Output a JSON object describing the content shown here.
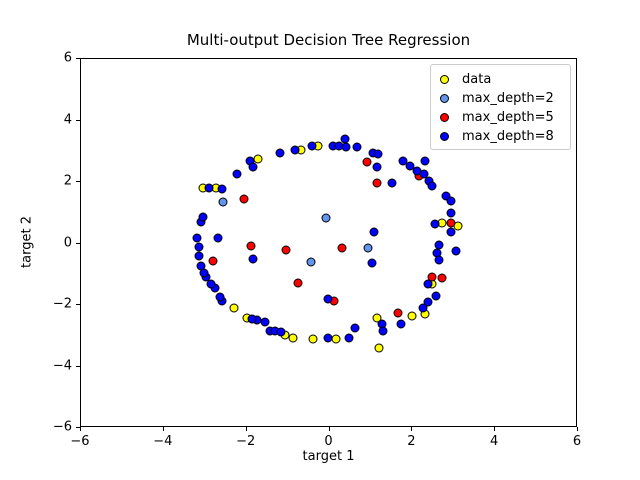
{
  "chart_data": {
    "type": "scatter",
    "title": "Multi-output Decision Tree Regression",
    "xlabel": "target 1",
    "ylabel": "target 2",
    "xlim": [
      -6,
      6
    ],
    "ylim": [
      -6,
      6
    ],
    "xticks": [
      -6,
      -4,
      -2,
      0,
      2,
      4,
      6
    ],
    "yticks": [
      -6,
      -4,
      -2,
      0,
      2,
      4,
      6
    ],
    "grid": false,
    "legend_position": "upper right",
    "marker_edge_color": "#000000",
    "series": [
      {
        "name": "data",
        "color": "#ffff00",
        "points": [
          [
            -1.7,
            2.72
          ],
          [
            -0.66,
            3.04
          ],
          [
            -0.25,
            3.14
          ],
          [
            -3.05,
            1.77
          ],
          [
            -2.72,
            1.77
          ],
          [
            2.74,
            0.63
          ],
          [
            3.13,
            0.54
          ],
          [
            2.52,
            -1.35
          ],
          [
            2.35,
            -2.33
          ],
          [
            2.02,
            -2.39
          ],
          [
            1.17,
            -2.46
          ],
          [
            1.22,
            -3.46
          ],
          [
            0.18,
            -3.14
          ],
          [
            -0.37,
            -3.14
          ],
          [
            -0.86,
            -3.11
          ],
          [
            -1.05,
            -3.01
          ],
          [
            -1.97,
            -2.46
          ],
          [
            -2.28,
            -2.13
          ]
        ]
      },
      {
        "name": "max_depth=2",
        "color": "#6495ed",
        "points": [
          [
            -2.55,
            1.32
          ],
          [
            -0.06,
            0.8
          ],
          [
            -0.42,
            -0.63
          ],
          [
            0.95,
            -0.18
          ]
        ]
      },
      {
        "name": "max_depth=5",
        "color": "#ff0000",
        "points": [
          [
            0.93,
            2.62
          ],
          [
            1.17,
            1.93
          ],
          [
            2.19,
            2.16
          ],
          [
            2.98,
            0.63
          ],
          [
            2.5,
            -1.12
          ],
          [
            2.74,
            -1.15
          ],
          [
            1.68,
            -2.29
          ],
          [
            0.13,
            -1.9
          ],
          [
            -0.74,
            -1.32
          ],
          [
            0.33,
            -0.18
          ],
          [
            -1.03,
            -0.24
          ],
          [
            -1.87,
            -0.11
          ],
          [
            -2.04,
            1.41
          ],
          [
            -2.81,
            -0.6
          ]
        ]
      },
      {
        "name": "max_depth=8",
        "color": "#0000ff",
        "points": [
          [
            -1.9,
            2.65
          ],
          [
            -1.82,
            2.46
          ],
          [
            -1.17,
            2.94
          ],
          [
            -0.81,
            3.04
          ],
          [
            -0.4,
            3.14
          ],
          [
            0.11,
            3.17
          ],
          [
            0.25,
            3.14
          ],
          [
            0.4,
            3.37
          ],
          [
            0.42,
            3.11
          ],
          [
            0.69,
            3.11
          ],
          [
            1.07,
            2.94
          ],
          [
            1.2,
            2.88
          ],
          [
            1.17,
            2.46
          ],
          [
            1.53,
            1.93
          ],
          [
            1.8,
            2.65
          ],
          [
            1.97,
            2.49
          ],
          [
            2.14,
            2.33
          ],
          [
            2.33,
            2.68
          ],
          [
            2.31,
            2.23
          ],
          [
            2.43,
            2.0
          ],
          [
            2.52,
            1.84
          ],
          [
            2.86,
            1.51
          ],
          [
            2.98,
            1.35
          ],
          [
            2.98,
            0.96
          ],
          [
            2.57,
            0.6
          ],
          [
            2.98,
            0.34
          ],
          [
            2.69,
            -0.08
          ],
          [
            2.64,
            -0.34
          ],
          [
            3.1,
            -0.28
          ],
          [
            2.67,
            -0.57
          ],
          [
            2.4,
            -1.35
          ],
          [
            2.6,
            -1.74
          ],
          [
            2.4,
            -1.93
          ],
          [
            2.28,
            -2.13
          ],
          [
            1.75,
            -2.65
          ],
          [
            1.29,
            -2.68
          ],
          [
            1.32,
            -2.88
          ],
          [
            0.64,
            -2.78
          ],
          [
            0.49,
            -3.11
          ],
          [
            -0.01,
            -3.11
          ],
          [
            -1.41,
            -2.88
          ],
          [
            -1.29,
            -2.91
          ],
          [
            -1.15,
            -2.94
          ],
          [
            -1.53,
            -2.59
          ],
          [
            -1.73,
            -2.55
          ],
          [
            -1.85,
            -2.49
          ],
          [
            -2.57,
            -1.9
          ],
          [
            -2.62,
            -1.77
          ],
          [
            -2.74,
            -1.48
          ],
          [
            -2.86,
            -1.35
          ],
          [
            -2.96,
            -1.12
          ],
          [
            -3.01,
            -0.99
          ],
          [
            -3.08,
            -0.76
          ],
          [
            -3.13,
            -0.44
          ],
          [
            -3.15,
            -0.15
          ],
          [
            -3.2,
            0.15
          ],
          [
            -2.67,
            0.15
          ],
          [
            -3.08,
            0.67
          ],
          [
            -3.05,
            0.83
          ],
          [
            -2.89,
            1.77
          ],
          [
            -2.57,
            1.74
          ],
          [
            -2.23,
            2.23
          ],
          [
            -1.82,
            -0.54
          ],
          [
            1.1,
            0.34
          ],
          [
            1.05,
            -0.67
          ],
          [
            -0.01,
            -1.84
          ]
        ]
      }
    ]
  }
}
